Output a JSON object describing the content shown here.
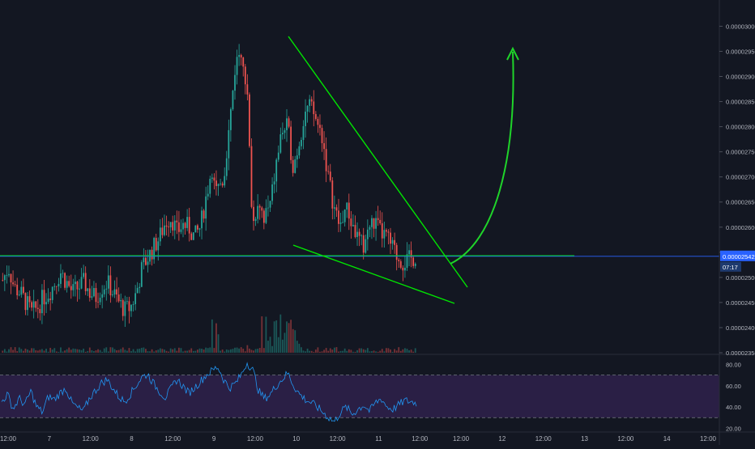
{
  "colors": {
    "background": "#131722",
    "up": "#26a69a",
    "down": "#ef5350",
    "trendline": "#00e600",
    "arrow": "#1fd42a",
    "price_line": "#2962ff",
    "rsi_line": "#2196f3",
    "rsi_band": "#2a1f45",
    "axis_text": "#b2b5be"
  },
  "price_axis": {
    "ticks": [
      "0.00003000",
      "0.00002950",
      "0.00002900",
      "0.00002850",
      "0.00002800",
      "0.00002750",
      "0.00002700",
      "0.00002650",
      "0.00002600",
      "0.00002550",
      "0.00002500",
      "0.00002450",
      "0.00002400",
      "0.00002350"
    ]
  },
  "current_price": {
    "value": "0.00002542",
    "countdown": "07:17"
  },
  "rsi_axis": {
    "ticks": [
      "80.00",
      "60.00",
      "40.00",
      "20.00"
    ]
  },
  "time_axis": {
    "labels": [
      "12:00",
      "7",
      "12:00",
      "8",
      "12:00",
      "9",
      "12:00",
      "10",
      "12:00",
      "11",
      "12:00",
      "12:00",
      "12",
      "12:00",
      "13",
      "12:00",
      "14",
      "12:00"
    ]
  },
  "chart_data": [
    {
      "type": "candlestick",
      "x_labels": [
        "12:00",
        "7",
        "12:00",
        "8",
        "12:00",
        "9",
        "12:00",
        "10",
        "12:00",
        "11",
        "12:00",
        "12:00",
        "12",
        "12:00",
        "13",
        "12:00",
        "14",
        "12:00"
      ],
      "ylim": [
        2.35e-05,
        3.02e-05
      ],
      "price_path": [
        [
          2.495e-05,
          2.52e-05,
          2.48e-05,
          2.47e-05,
          2.45e-05,
          2.43e-05,
          2.44e-05,
          2.46e-05,
          2.47e-05,
          2.49e-05,
          2.51e-05,
          2.49e-05,
          2.47e-05,
          2.48e-05,
          2.49e-05,
          2.47e-05,
          2.46e-05,
          2.48e-05,
          2.49e-05,
          2.47e-05,
          2.45e-05,
          2.435e-05,
          2.44e-05,
          2.47e-05,
          2.52e-05,
          2.54e-05,
          2.56e-05,
          2.58e-05,
          2.61e-05,
          2.62e-05,
          2.59e-05,
          2.605e-05,
          2.6e-05,
          2.58e-05,
          2.6e-05,
          2.66e-05,
          2.72e-05,
          2.68e-05,
          2.7e-05,
          2.8e-05,
          2.92e-05,
          2.96e-05,
          2.88e-05,
          2.6e-05,
          2.66e-05,
          2.62e-05,
          2.64e-05,
          2.72e-05,
          2.79e-05,
          2.8e-05,
          2.72e-05,
          2.77e-05,
          2.83e-05,
          2.84e-05,
          2.81e-05,
          2.78e-05,
          2.7e-05,
          2.64e-05,
          2.6e-05,
          2.64e-05,
          2.61e-05,
          2.58e-05,
          2.56e-05,
          2.6e-05,
          2.61e-05,
          2.59e-05,
          2.58e-05,
          2.56e-05,
          2.54e-05,
          2.53e-05,
          2.535e-05,
          2.542e-05
        ]
      ],
      "support_level": 2.543e-05,
      "trendlines": [
        {
          "name": "upper",
          "from": [
            2.963e-05
          ],
          "to": [
            2.48e-05
          ]
        },
        {
          "name": "lower",
          "from": [
            2.56e-05
          ],
          "to": [
            2.46e-05
          ]
        }
      ]
    },
    {
      "type": "line",
      "name": "",
      "ylim": [
        18,
        88
      ],
      "bands": [
        30,
        70
      ],
      "values": [
        45,
        52,
        38,
        48,
        42,
        55,
        40,
        35,
        50,
        47,
        53,
        58,
        44,
        39,
        36,
        48,
        55,
        62,
        66,
        58,
        50,
        45,
        52,
        60,
        68,
        71,
        62,
        55,
        49,
        57,
        66,
        60,
        53,
        58,
        64,
        70,
        74,
        78,
        66,
        58,
        62,
        70,
        82,
        75,
        55,
        48,
        52,
        60,
        66,
        72,
        60,
        52,
        47,
        44,
        40,
        35,
        30,
        26,
        35,
        40,
        33,
        38,
        42,
        36,
        44,
        48,
        40,
        38,
        42,
        46,
        45,
        44
      ]
    }
  ]
}
